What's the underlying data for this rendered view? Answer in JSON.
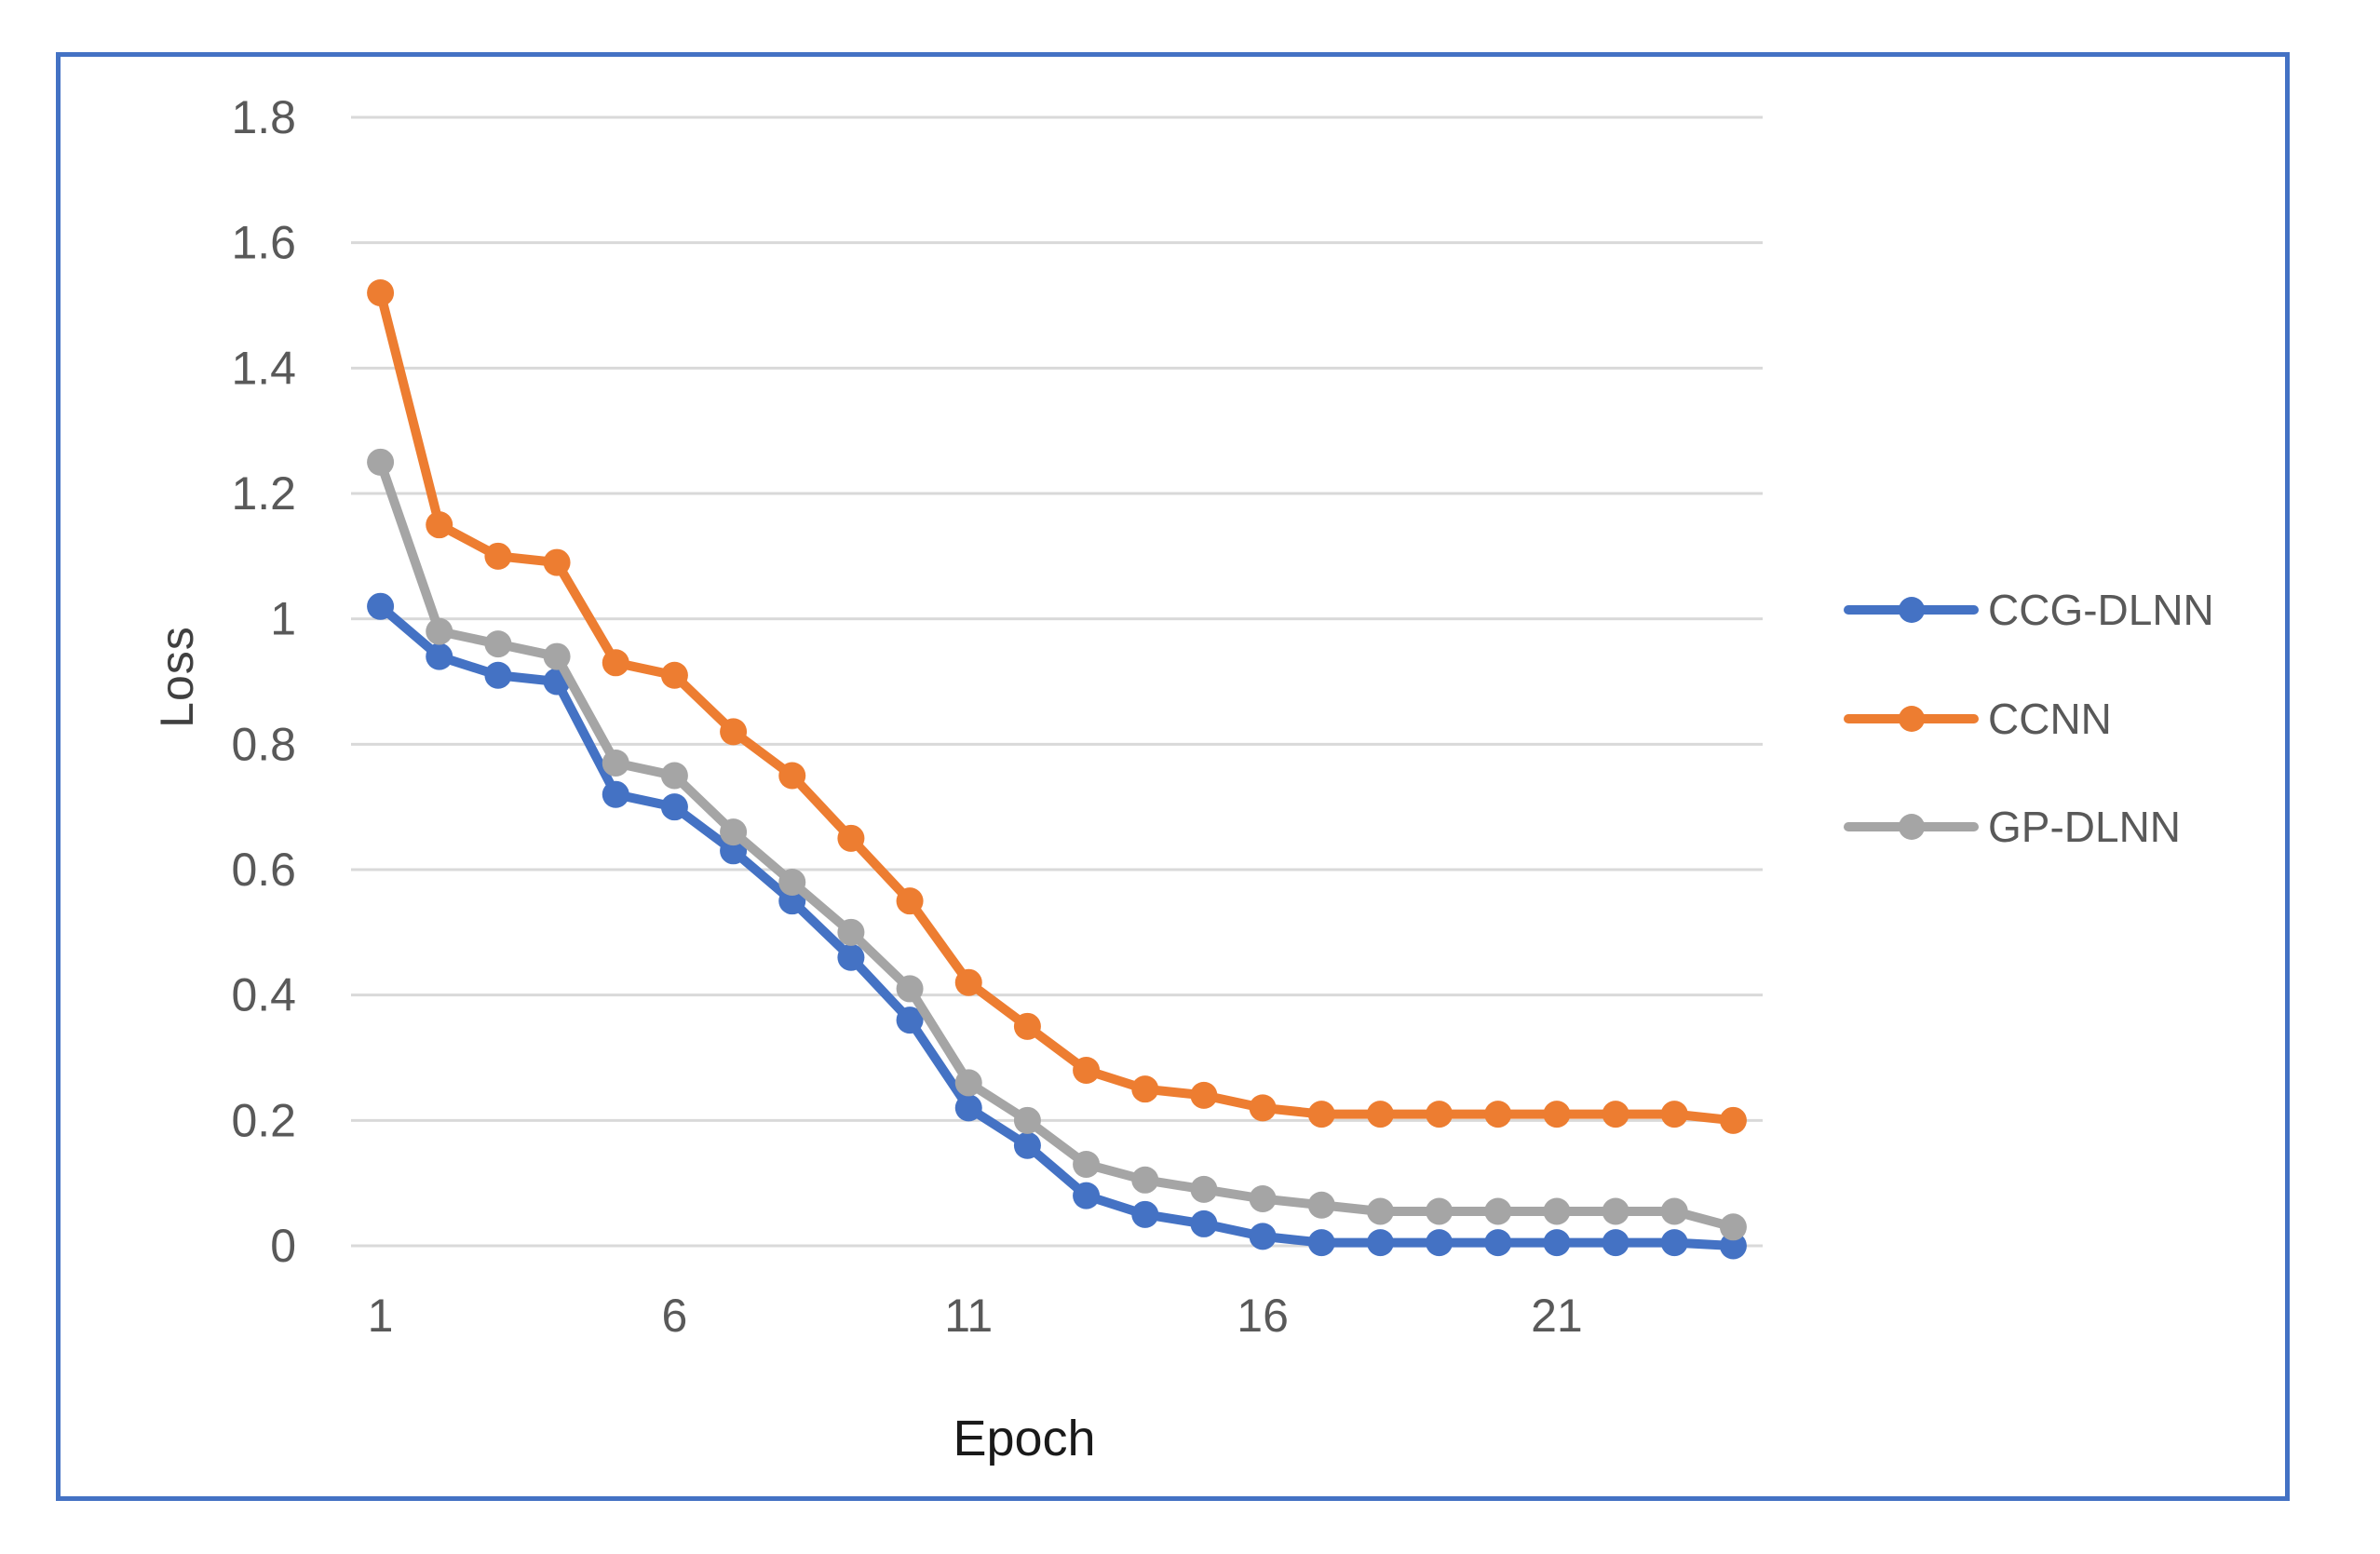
{
  "frame": {
    "border_color": "#4472C4",
    "background": "#ffffff"
  },
  "chart_data": {
    "type": "line",
    "title": "",
    "xlabel": "Epoch",
    "ylabel": "Loss",
    "x": [
      1,
      2,
      3,
      4,
      5,
      6,
      7,
      8,
      9,
      10,
      11,
      12,
      13,
      14,
      15,
      16,
      17,
      18,
      19,
      20,
      21,
      22,
      23,
      24
    ],
    "x_ticks": [
      1,
      6,
      11,
      16,
      21
    ],
    "y_ticks": [
      0,
      0.2,
      0.4,
      0.6,
      0.8,
      1,
      1.2,
      1.4,
      1.6,
      1.8
    ],
    "ylim": [
      0,
      1.8
    ],
    "grid": "horizontal",
    "gridline_color": "#D9D9D9",
    "tick_label_color": "#595959",
    "legend_position": "right",
    "marker": "circle",
    "series": [
      {
        "name": "CCG-DLNN",
        "color": "#4472C4",
        "values": [
          1.02,
          0.94,
          0.91,
          0.9,
          0.72,
          0.7,
          0.63,
          0.55,
          0.46,
          0.36,
          0.22,
          0.16,
          0.08,
          0.05,
          0.035,
          0.015,
          0.005,
          0.005,
          0.005,
          0.005,
          0.005,
          0.005,
          0.005,
          0.0
        ]
      },
      {
        "name": "CCNN",
        "color": "#ED7D31",
        "values": [
          1.52,
          1.15,
          1.1,
          1.09,
          0.93,
          0.91,
          0.82,
          0.75,
          0.65,
          0.55,
          0.42,
          0.35,
          0.28,
          0.25,
          0.24,
          0.22,
          0.21,
          0.21,
          0.21,
          0.21,
          0.21,
          0.21,
          0.21,
          0.2
        ]
      },
      {
        "name": "GP-DLNN",
        "color": "#A5A5A5",
        "values": [
          1.25,
          0.98,
          0.96,
          0.94,
          0.77,
          0.75,
          0.66,
          0.58,
          0.5,
          0.41,
          0.26,
          0.2,
          0.13,
          0.105,
          0.09,
          0.075,
          0.065,
          0.055,
          0.055,
          0.055,
          0.055,
          0.055,
          0.055,
          0.03
        ]
      }
    ]
  }
}
